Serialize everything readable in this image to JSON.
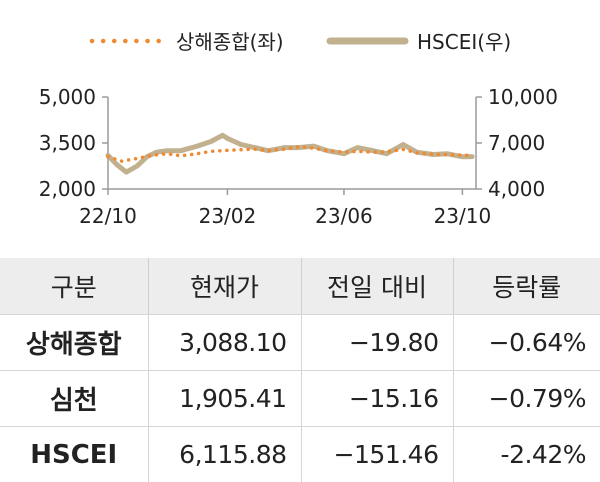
{
  "chart_data": {
    "type": "line",
    "legend": [
      "상해종합(좌)",
      "HSCEI(우)"
    ],
    "legend_position": "top-center",
    "x_tick_labels": [
      "22/10",
      "23/02",
      "23/06",
      "23/10"
    ],
    "y_left": {
      "ticks": [
        "5,000",
        "3,500",
        "2,000"
      ],
      "range": [
        2000,
        5000
      ]
    },
    "y_right": {
      "ticks": [
        "10,000",
        "7,000",
        "4,000"
      ],
      "range": [
        4000,
        10000
      ]
    },
    "grid": false,
    "series": [
      {
        "name": "상해종합(좌)",
        "axis": "left",
        "color": "#ef8a32",
        "style": "dotted",
        "x": [
          "2022-10-01",
          "2022-10-15",
          "2022-11-01",
          "2022-11-15",
          "2022-12-01",
          "2022-12-15",
          "2023-01-01",
          "2023-01-15",
          "2023-02-01",
          "2023-02-15",
          "2023-03-01",
          "2023-03-15",
          "2023-04-01",
          "2023-04-15",
          "2023-05-01",
          "2023-05-15",
          "2023-06-01",
          "2023-06-15",
          "2023-07-01",
          "2023-07-15",
          "2023-08-01",
          "2023-08-15",
          "2023-09-01",
          "2023-09-15",
          "2023-10-01",
          "2023-10-11"
        ],
        "y": [
          3050,
          2910,
          3000,
          3100,
          3150,
          3080,
          3150,
          3230,
          3260,
          3280,
          3300,
          3250,
          3300,
          3380,
          3330,
          3250,
          3200,
          3230,
          3200,
          3210,
          3290,
          3180,
          3130,
          3120,
          3110,
          3088
        ]
      },
      {
        "name": "HSCEI(우)",
        "axis": "right",
        "color": "#c2b18f",
        "style": "solid",
        "x": [
          "2022-10-01",
          "2022-10-10",
          "2022-10-20",
          "2022-10-31",
          "2022-11-10",
          "2022-11-20",
          "2022-12-01",
          "2022-12-15",
          "2023-01-01",
          "2023-01-15",
          "2023-01-27",
          "2023-02-01",
          "2023-02-15",
          "2023-03-01",
          "2023-03-15",
          "2023-04-01",
          "2023-04-15",
          "2023-05-01",
          "2023-05-15",
          "2023-06-01",
          "2023-06-15",
          "2023-07-01",
          "2023-07-15",
          "2023-08-01",
          "2023-08-15",
          "2023-09-01",
          "2023-09-15",
          "2023-10-01",
          "2023-10-11"
        ],
        "y": [
          6200,
          5600,
          5100,
          5500,
          6100,
          6400,
          6500,
          6500,
          6800,
          7100,
          7500,
          7300,
          6900,
          6700,
          6500,
          6700,
          6700,
          6800,
          6500,
          6300,
          6700,
          6500,
          6300,
          6900,
          6400,
          6250,
          6300,
          6100,
          6116
        ]
      }
    ]
  },
  "table": {
    "headers": [
      "구분",
      "현재가",
      "전일 대비",
      "등락률"
    ],
    "rows": [
      {
        "name": "상해종합",
        "price": "3,088.10",
        "change": "−19.80",
        "rate": "−0.64%"
      },
      {
        "name": "심천",
        "price": "1,905.41",
        "change": "−15.16",
        "rate": "−0.79%"
      },
      {
        "name": "HSCEI",
        "price": "6,115.88",
        "change": "−151.46",
        "rate": "-2.42%"
      }
    ]
  }
}
